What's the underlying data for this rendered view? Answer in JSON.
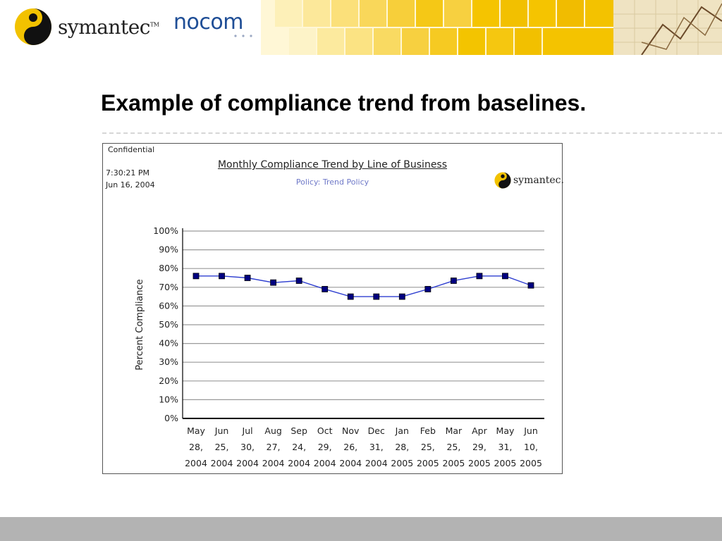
{
  "header": {
    "symantec_logo_text": "symantec",
    "symantec_tm": "TM",
    "nocom_logo_text": "nocom"
  },
  "slide": {
    "title": "Example of compliance trend from baselines."
  },
  "report": {
    "confidential": "Confidential",
    "time": "7:30:21 PM",
    "date": "Jun 16, 2004",
    "logo_text": "symantec."
  },
  "chart_data": {
    "type": "line",
    "title": "Monthly Compliance Trend by Line of Business",
    "subtitle": "Policy: Trend Policy",
    "ylabel": "Percent Compliance",
    "xlabel": "",
    "ylim": [
      0,
      100
    ],
    "yticks": [
      "100%",
      "90%",
      "80%",
      "70%",
      "60%",
      "50%",
      "40%",
      "30%",
      "20%",
      "10%",
      "0%"
    ],
    "categories": [
      [
        "May",
        "28,",
        "2004"
      ],
      [
        "Jun",
        "25,",
        "2004"
      ],
      [
        "Jul",
        "30,",
        "2004"
      ],
      [
        "Aug",
        "27,",
        "2004"
      ],
      [
        "Sep",
        "24,",
        "2004"
      ],
      [
        "Oct",
        "29,",
        "2004"
      ],
      [
        "Nov",
        "26,",
        "2004"
      ],
      [
        "Dec",
        "31,",
        "2004"
      ],
      [
        "Jan",
        "28,",
        "2005"
      ],
      [
        "Feb",
        "25,",
        "2005"
      ],
      [
        "Mar",
        "25,",
        "2005"
      ],
      [
        "Apr",
        "29,",
        "2005"
      ],
      [
        "May",
        "31,",
        "2005"
      ],
      [
        "Jun",
        "10,",
        "2005"
      ]
    ],
    "values": [
      76,
      76,
      75,
      72.5,
      73.5,
      69,
      65,
      65,
      65,
      69,
      73.5,
      76,
      76,
      71
    ],
    "grid": true,
    "colors": {
      "line": "#2f3fd0",
      "marker": "#000080",
      "grid": "#9a9a9a",
      "axis": "#000000"
    }
  },
  "colors": {
    "mosaic_yellow": "#f5c400",
    "footer": "#b3b3b3",
    "nocom_blue": "#1f4e96"
  }
}
